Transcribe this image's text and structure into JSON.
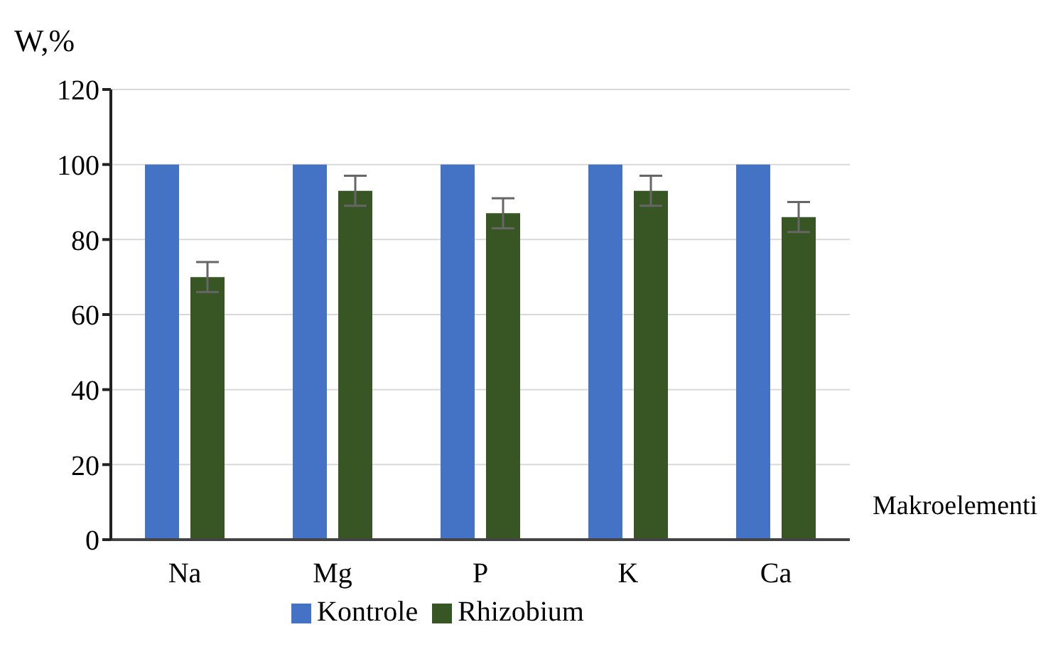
{
  "chart_data": {
    "type": "bar",
    "ylabel": "W,%",
    "xlabel": "Makroelementi",
    "categories": [
      "Na",
      "Mg",
      "P",
      "K",
      "Ca"
    ],
    "series": [
      {
        "name": "Kontrole",
        "color": "#4472c4",
        "values": [
          100,
          100,
          100,
          100,
          100
        ]
      },
      {
        "name": "Rhizobium",
        "color": "#375623",
        "values": [
          70,
          93,
          87,
          93,
          86
        ],
        "errors": [
          4,
          4,
          4,
          4,
          4
        ]
      }
    ],
    "ylim": [
      0,
      120
    ],
    "yticks": [
      0,
      20,
      40,
      60,
      80,
      100,
      120
    ],
    "grid": "y",
    "legend": "bottom"
  }
}
